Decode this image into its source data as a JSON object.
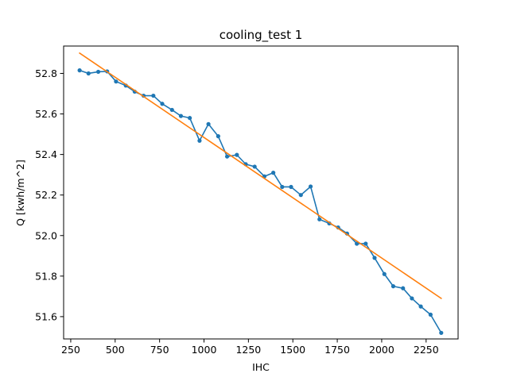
{
  "chart_data": {
    "type": "line",
    "title": "cooling_test 1",
    "xlabel": "IHC",
    "ylabel": "Q [kwh/m^2]",
    "xlim": [
      210,
      2430
    ],
    "ylim": [
      51.49,
      52.935
    ],
    "xticks": [
      250,
      500,
      750,
      1000,
      1250,
      1500,
      1750,
      2000,
      2250
    ],
    "yticks": [
      51.6,
      51.8,
      52.0,
      52.2,
      52.4,
      52.6,
      52.8
    ],
    "ytick_labels": [
      "51.6",
      "51.8",
      "52.0",
      "52.2",
      "52.4",
      "52.6",
      "52.8"
    ],
    "grid": false,
    "series": [
      {
        "color": "#1f77b4",
        "marker": "circle",
        "x": [
          300,
          350,
          405,
          455,
          505,
          560,
          610,
          660,
          715,
          765,
          820,
          870,
          920,
          975,
          1025,
          1080,
          1130,
          1185,
          1235,
          1285,
          1340,
          1390,
          1440,
          1490,
          1545,
          1600,
          1650,
          1705,
          1755,
          1805,
          1860,
          1910,
          1960,
          2015,
          2065,
          2120,
          2170,
          2220,
          2275,
          2335
        ],
        "y": [
          52.815,
          52.8,
          52.808,
          52.81,
          52.76,
          52.74,
          52.71,
          52.69,
          52.69,
          52.65,
          52.62,
          52.59,
          52.58,
          52.468,
          52.55,
          52.49,
          52.39,
          52.398,
          52.352,
          52.34,
          52.292,
          52.31,
          52.24,
          52.24,
          52.2,
          52.242,
          52.08,
          52.06,
          52.04,
          52.01,
          51.96,
          51.96,
          51.89,
          51.81,
          51.75,
          51.74,
          51.69,
          51.65,
          51.61,
          51.52
        ]
      },
      {
        "color": "#ff7f0e",
        "marker": "none",
        "x": [
          300,
          2335
        ],
        "y": [
          52.9,
          51.69
        ]
      }
    ]
  }
}
